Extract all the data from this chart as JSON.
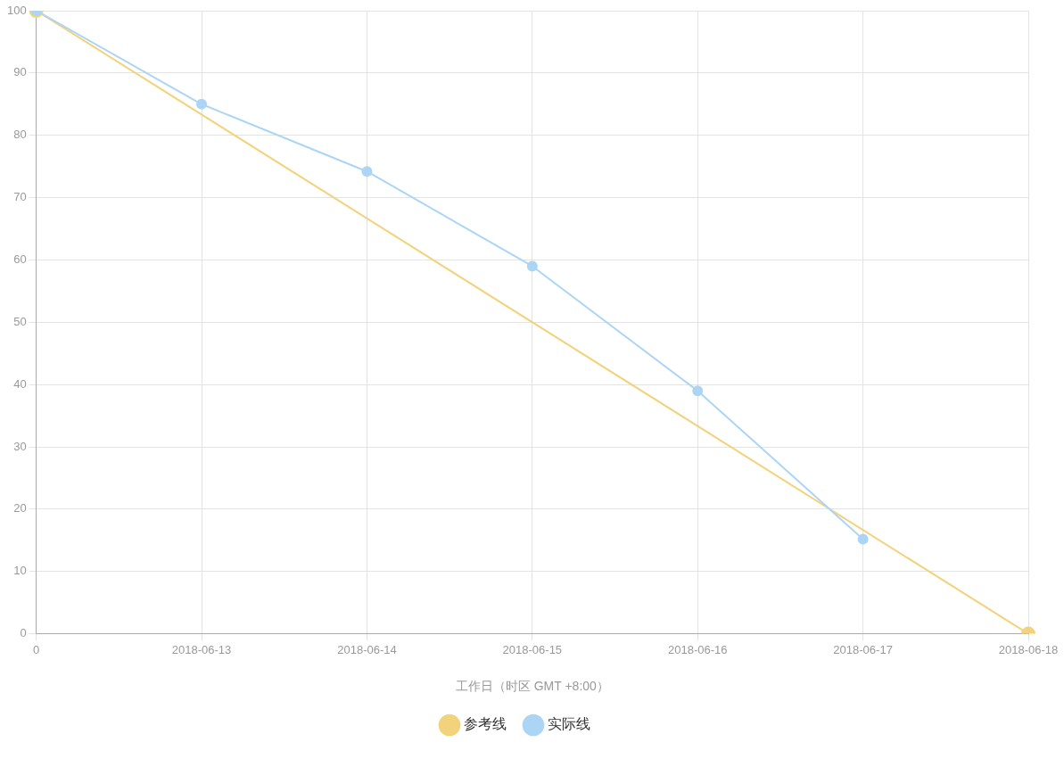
{
  "chart_data": {
    "type": "line",
    "xlabel": "工作日（时区 GMT +8:00）",
    "categories": [
      "0",
      "2018-06-13",
      "2018-06-14",
      "2018-06-15",
      "2018-06-16",
      "2018-06-17",
      "2018-06-18"
    ],
    "series": [
      {
        "name": "参考线",
        "color": "#f2d27a",
        "values": [
          100,
          null,
          null,
          null,
          null,
          null,
          0
        ]
      },
      {
        "name": "实际线",
        "color": "#acd5f5",
        "values": [
          100,
          85,
          74.2,
          59,
          39,
          15.2,
          null
        ]
      }
    ],
    "ylim": [
      0,
      100
    ],
    "yticks": [
      0,
      10,
      20,
      30,
      40,
      50,
      60,
      70,
      80,
      90,
      100
    ],
    "grid": true,
    "legend": "bottom",
    "marker": "circle",
    "line_style": "solid"
  }
}
